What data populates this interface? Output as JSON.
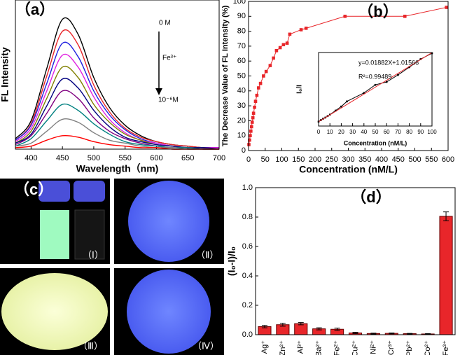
{
  "chart_data": [
    {
      "type": "line",
      "panel_label": "（a）",
      "x_label": "Wavelength（nm)",
      "y_label": "FL Intensity",
      "annotations": [
        "0 M",
        "Fe³⁺",
        "10⁻⁶M"
      ],
      "x": [
        375,
        400,
        425,
        450,
        475,
        500,
        525,
        550,
        575,
        600,
        625,
        650,
        675,
        700
      ],
      "xlim": [
        375,
        700
      ],
      "xticks": [
        400,
        450,
        500,
        550,
        600,
        650,
        700
      ],
      "ylim": [
        0,
        100
      ],
      "series": [
        {
          "color": "#000000",
          "values": [
            7,
            19,
            54,
            87,
            77,
            48,
            28,
            16,
            9,
            5,
            3,
            2,
            1,
            1
          ]
        },
        {
          "color": "#e8262a",
          "values": [
            6,
            17,
            49,
            79,
            70,
            43,
            25,
            14,
            8,
            5,
            3,
            2,
            1,
            1
          ]
        },
        {
          "color": "#2020e0",
          "values": [
            6,
            16,
            44,
            71,
            62,
            39,
            23,
            13,
            7,
            4,
            2,
            1,
            1,
            1
          ]
        },
        {
          "color": "#e020e0",
          "values": [
            5,
            14,
            39,
            63,
            55,
            35,
            20,
            11,
            6,
            4,
            2,
            1,
            1,
            1
          ]
        },
        {
          "color": "#808000",
          "values": [
            4,
            12,
            34,
            55,
            48,
            30,
            18,
            10,
            6,
            3,
            2,
            1,
            1,
            0
          ]
        },
        {
          "color": "#000080",
          "values": [
            4,
            10,
            29,
            47,
            41,
            26,
            15,
            8,
            5,
            3,
            2,
            1,
            1,
            0
          ]
        },
        {
          "color": "#800080",
          "values": [
            3,
            9,
            24,
            39,
            34,
            21,
            12,
            7,
            4,
            2,
            1,
            1,
            0,
            0
          ]
        },
        {
          "color": "#008080",
          "values": [
            2,
            7,
            19,
            30,
            26,
            17,
            10,
            5,
            3,
            2,
            1,
            1,
            0,
            0
          ]
        },
        {
          "color": "#808080",
          "values": [
            2,
            4,
            12,
            20,
            18,
            11,
            6,
            4,
            2,
            1,
            1,
            0,
            0,
            0
          ]
        },
        {
          "color": "#ff0000",
          "values": [
            1,
            2,
            6,
            9,
            8,
            5,
            3,
            2,
            1,
            1,
            0,
            0,
            0,
            0
          ]
        }
      ]
    },
    {
      "type": "line",
      "panel_label": "（b）",
      "x_label": "Concentration (nM/L)",
      "y_label": "The Decrease Value of FL Intensity (%)",
      "x": [
        1,
        3,
        5,
        7,
        9,
        11,
        13,
        15,
        18,
        21,
        25,
        30,
        36,
        45,
        53,
        65,
        75,
        84,
        95,
        105,
        116,
        124,
        158,
        173,
        290,
        470,
        595
      ],
      "xlim": [
        0,
        600
      ],
      "xticks": [
        0,
        50,
        100,
        150,
        200,
        250,
        300,
        350,
        400,
        450,
        500,
        550,
        600
      ],
      "ylim": [
        0,
        100
      ],
      "yticks": [
        0,
        10,
        20,
        30,
        40,
        50,
        60,
        70,
        80,
        90,
        100
      ],
      "series": [
        {
          "color": "#e8262a",
          "marker": "square",
          "values": [
            4,
            7,
            10,
            13,
            16,
            19,
            22,
            25,
            29,
            33,
            37,
            42,
            45,
            50,
            53,
            57,
            62,
            67,
            69,
            71,
            72,
            78,
            81,
            82,
            90,
            90,
            96
          ]
        }
      ]
    },
    {
      "type": "line",
      "x_label": "Concentration (nM/L)",
      "y_label": "I₀/I",
      "annotations": [
        "y=0.01882X+1.01566",
        "R²=0.99489"
      ],
      "x": [
        0,
        2,
        4,
        6,
        8,
        10,
        15,
        20,
        25,
        40,
        50,
        60,
        70,
        80,
        90,
        100
      ],
      "xlim": [
        0,
        100
      ],
      "xticks": [
        0,
        10,
        20,
        30,
        40,
        50,
        60,
        70,
        80,
        90,
        100
      ],
      "ylim": [
        0.9,
        2.9
      ],
      "series": [
        {
          "color": "#000000",
          "marker": "square",
          "values": [
            1.02,
            1.06,
            1.1,
            1.13,
            1.17,
            1.21,
            1.32,
            1.43,
            1.57,
            1.8,
            2.02,
            2.1,
            2.29,
            2.5,
            2.72,
            2.88
          ]
        },
        {
          "color": "#e8262a",
          "values": [
            1.016,
            1.053,
            1.091,
            1.129,
            1.166,
            1.204,
            1.298,
            1.392,
            1.486,
            1.768,
            1.957,
            2.145,
            2.333,
            2.521,
            2.709,
            2.898
          ]
        }
      ]
    },
    {
      "type": "bar",
      "panel_label": "（d）",
      "y_label": "(I₀-I)/I₀",
      "color": "#e8262a",
      "categories": [
        "Ag⁺",
        "Zn²⁺",
        "Al³⁺",
        "Ba²⁺",
        "Fe²⁺",
        "Cu²⁺",
        "Ni²⁺",
        "Cr³⁺",
        "Pb²⁺",
        "Co²⁺",
        "Fe³⁺"
      ],
      "values": [
        0.055,
        0.068,
        0.075,
        0.04,
        0.037,
        0.012,
        0.008,
        0.009,
        0.007,
        0.005,
        0.805
      ],
      "errors": [
        0.008,
        0.01,
        0.008,
        0.007,
        0.008,
        0.004,
        0.003,
        0.003,
        0.002,
        0.002,
        0.03
      ],
      "ylim": [
        0,
        1
      ],
      "yticks": [
        {
          "value": 0,
          "label": "0.0"
        },
        0.2,
        0.4,
        0.6,
        0.8,
        {
          "value": 1,
          "label": "1.0"
        }
      ]
    }
  ],
  "photos": {
    "label": "（c）",
    "panels": [
      "（Ⅰ）",
      "（Ⅱ）",
      "（Ⅲ）",
      "（Ⅳ）"
    ]
  }
}
